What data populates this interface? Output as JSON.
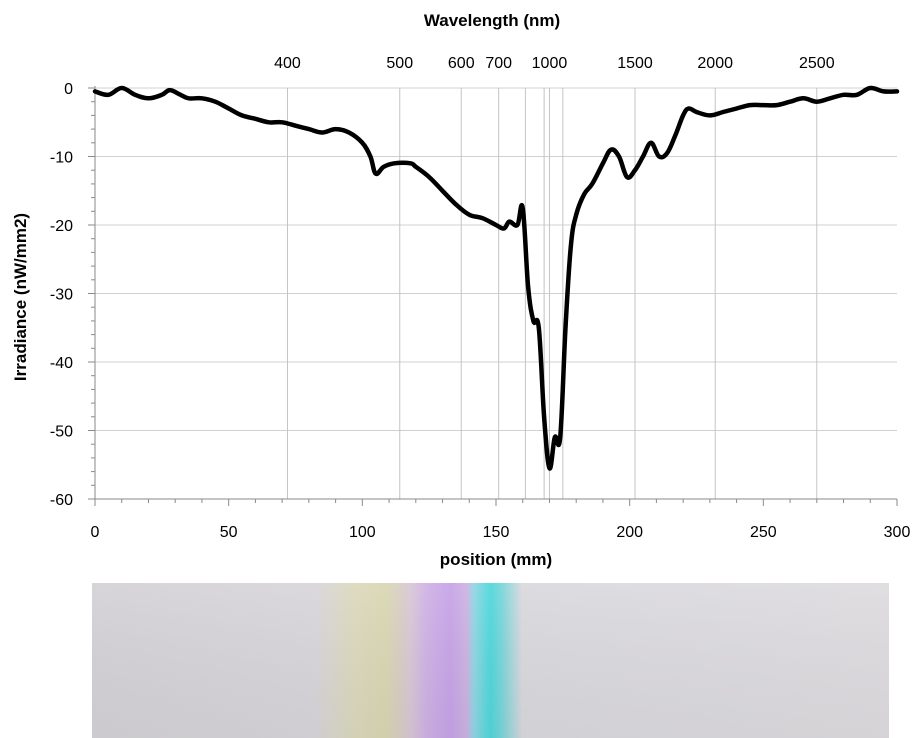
{
  "chart_data": {
    "type": "line",
    "xlabel": "position (mm)",
    "ylabel": "Irradiance (nW/mm2)",
    "top_axis_label": "Wavelength (nm)",
    "xlim": [
      0,
      300
    ],
    "ylim": [
      -60,
      0
    ],
    "x_ticks": [
      {
        "value": 0,
        "label": "0"
      },
      {
        "value": 50,
        "label": "50"
      },
      {
        "value": 100,
        "label": "100"
      },
      {
        "value": 150,
        "label": "150"
      },
      {
        "value": 200,
        "label": "200"
      },
      {
        "value": 250,
        "label": "250"
      },
      {
        "value": 300,
        "label": "300"
      }
    ],
    "y_ticks": [
      {
        "value": 0,
        "label": "0"
      },
      {
        "value": -10,
        "label": "-10"
      },
      {
        "value": -20,
        "label": "-20"
      },
      {
        "value": -30,
        "label": "-30"
      },
      {
        "value": -40,
        "label": "-40"
      },
      {
        "value": -50,
        "label": "-50"
      },
      {
        "value": -60,
        "label": "-60"
      }
    ],
    "wavelength_ticks": [
      {
        "position": 72,
        "label": "400"
      },
      {
        "position": 114,
        "label": "500"
      },
      {
        "position": 137,
        "label": "600"
      },
      {
        "position": 151,
        "label": "700"
      },
      {
        "position": 170,
        "label": "1000"
      },
      {
        "position": 202,
        "label": "1500"
      },
      {
        "position": 232,
        "label": "2000"
      },
      {
        "position": 270,
        "label": "2500"
      }
    ],
    "extra_grid_positions": [
      161,
      168,
      175
    ],
    "grid": true,
    "series": [
      {
        "color": "#000000",
        "x": [
          0,
          5,
          10,
          15,
          20,
          25,
          28,
          32,
          35,
          40,
          45,
          50,
          55,
          60,
          65,
          70,
          75,
          80,
          85,
          90,
          95,
          100,
          103,
          105,
          108,
          112,
          118,
          120,
          125,
          130,
          135,
          140,
          145,
          150,
          153,
          155,
          158,
          160,
          162,
          164,
          166,
          168,
          170,
          172,
          174,
          176,
          178,
          180,
          183,
          186,
          190,
          193,
          196,
          199,
          202,
          205,
          208,
          211,
          214,
          217,
          220,
          222,
          225,
          230,
          235,
          240,
          245,
          250,
          255,
          260,
          265,
          270,
          275,
          280,
          285,
          290,
          295,
          300
        ],
        "y": [
          -0.5,
          -1,
          0,
          -1,
          -1.5,
          -1,
          -0.3,
          -1,
          -1.5,
          -1.5,
          -2,
          -3,
          -4,
          -4.5,
          -5,
          -5,
          -5.5,
          -6,
          -6.5,
          -6,
          -6.5,
          -8,
          -10,
          -12.5,
          -11.5,
          -11,
          -11,
          -11.5,
          -13,
          -15,
          -17,
          -18.5,
          -19,
          -20,
          -20.5,
          -19.5,
          -20,
          -17.5,
          -29,
          -34,
          -35,
          -48,
          -55.5,
          -51,
          -51,
          -35,
          -23,
          -18.5,
          -15.5,
          -14,
          -11,
          -9,
          -10,
          -13,
          -12,
          -10,
          -8,
          -10,
          -9.5,
          -7,
          -4,
          -3,
          -3.5,
          -4,
          -3.5,
          -3,
          -2.5,
          -2.5,
          -2.5,
          -2,
          -1.5,
          -2,
          -1.5,
          -1,
          -1,
          0,
          -0.5,
          -0.5
        ]
      }
    ]
  },
  "spectrum_image": {
    "colors": {
      "background": "#dbd9de",
      "yellow": "#ddd9b2",
      "violet": "#c8a6e6",
      "cyan": "#4fd8dc"
    }
  }
}
